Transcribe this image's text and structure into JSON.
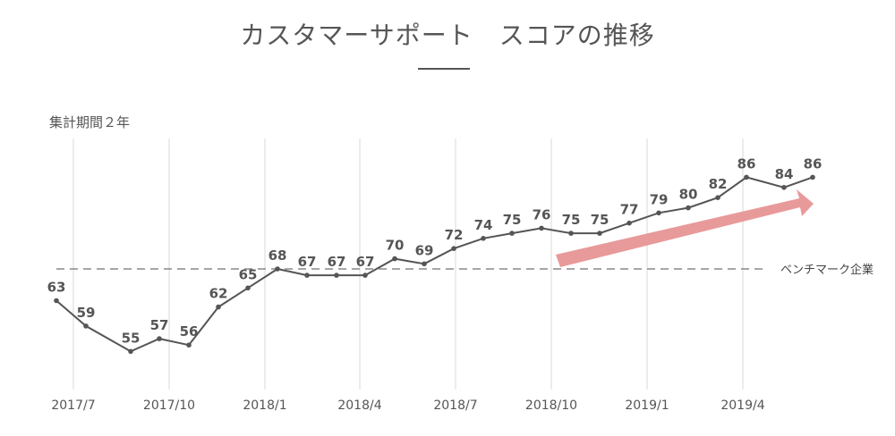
{
  "chart_data": {
    "type": "line",
    "title": "カスタマーサポート　スコアの推移",
    "subtitle": "集計期間２年",
    "x_tick_labels": [
      "2017/7",
      "2017/10",
      "2018/1",
      "2018/4",
      "2018/7",
      "2018/10",
      "2019/1",
      "2019/4"
    ],
    "series": [
      {
        "name": "スコア",
        "values": [
          63,
          59,
          55,
          57,
          56,
          62,
          65,
          68,
          67,
          67,
          67,
          70,
          69,
          72,
          74,
          75,
          76,
          75,
          75,
          77,
          79,
          80,
          82,
          86,
          84,
          86
        ]
      }
    ],
    "benchmark": {
      "label": "ベンチマーク企業",
      "value": 68
    },
    "annotation": "upward trend arrow",
    "grid": "vertical",
    "colors": {
      "line": "#555555",
      "arrow": "#e89a9a",
      "benchmark": "#888888"
    }
  }
}
